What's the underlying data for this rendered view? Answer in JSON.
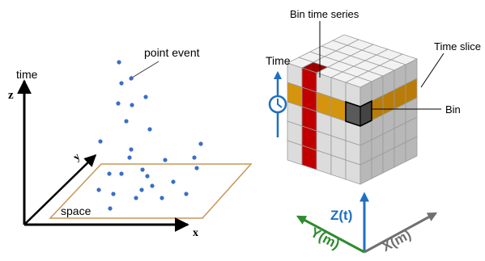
{
  "left_panel": {
    "annotation": "point event",
    "time_axis": "time",
    "z_axis": "z",
    "y_axis": "y",
    "x_axis": "x",
    "plane": "space"
  },
  "right_panel": {
    "bin_time_series": "Bin time series",
    "time": "Time",
    "time_slice": "Time slice",
    "bin": "Bin",
    "z_axis": "Z(t)",
    "y_axis": "Y(m)",
    "x_axis": "X(m)"
  }
}
